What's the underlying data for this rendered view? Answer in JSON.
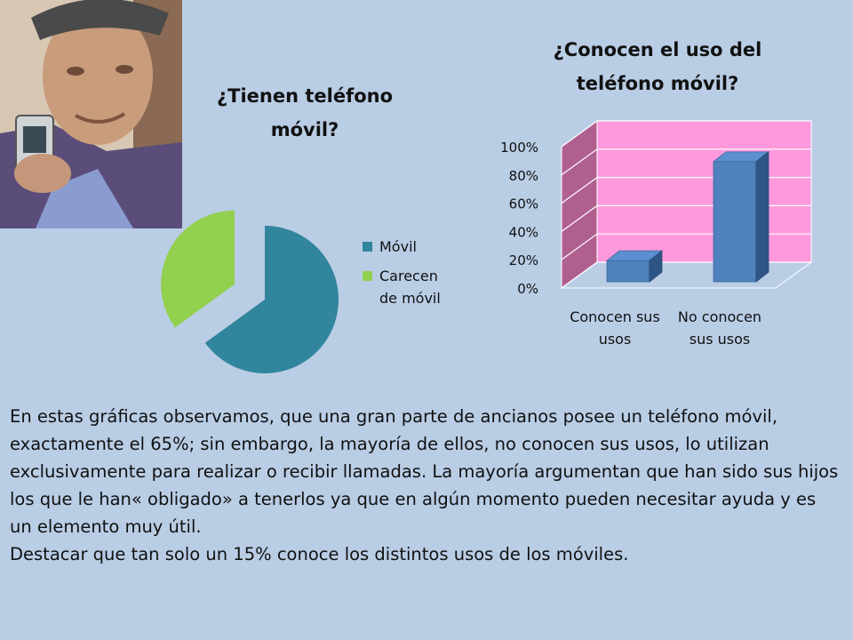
{
  "pie_title": "¿Tienen teléfono móvil?",
  "bar_title": "¿Conocen el uso del teléfono móvil?",
  "colors": {
    "background": "#b9cde5",
    "pie_movil": "#31859c",
    "pie_carecen": "#92d050",
    "bar_fill": "#4f81bd",
    "bar_back_wall": "#ff99dd",
    "bar_side_wall": "#b0608f"
  },
  "chart_data": [
    {
      "type": "pie",
      "title": "¿Tienen teléfono móvil?",
      "categories": [
        "Móvil",
        "Carecen de móvil"
      ],
      "values": [
        65,
        35
      ],
      "legend": "right",
      "exploded": "Carecen de móvil"
    },
    {
      "type": "bar",
      "title": "¿Conocen el uso del teléfono móvil?",
      "categories": [
        "Conocen sus usos",
        "No conocen sus usos"
      ],
      "values": [
        15,
        85
      ],
      "y_tick_labels": [
        "0%",
        "20%",
        "40%",
        "60%",
        "80%",
        "100%"
      ],
      "ylim": [
        0,
        100
      ],
      "grid": true,
      "style": "3d"
    }
  ],
  "body": {
    "paragraph1": "En estas gráficas observamos, que una gran parte de ancianos posee un teléfono móvil, exactamente el 65%; sin embargo, la mayoría de ellos, no conocen sus usos, lo utilizan exclusivamente para realizar o recibir llamadas. La mayoría argumentan que han sido sus hijos los que le han« obligado» a tenerlos ya que en algún momento pueden necesitar ayuda y es un elemento muy útil.",
    "paragraph2": "Destacar que tan solo un 15% conoce los distintos usos de los móviles."
  }
}
